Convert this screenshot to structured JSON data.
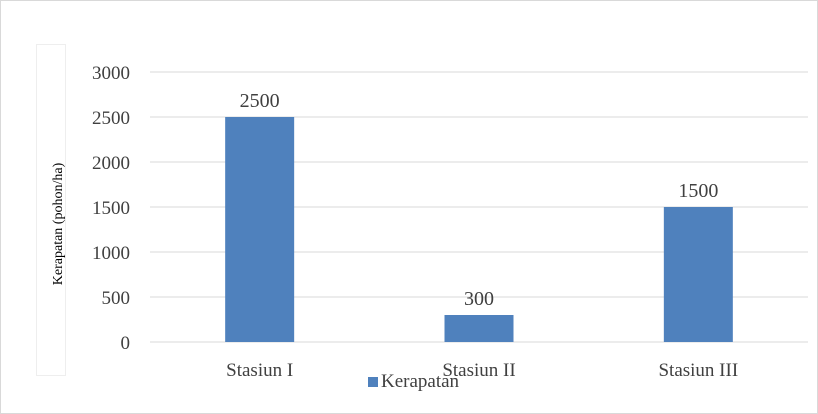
{
  "chart_data": {
    "type": "bar",
    "categories": [
      "Stasiun I",
      "Stasiun II",
      "Stasiun III"
    ],
    "series": [
      {
        "name": "Kerapatan",
        "values": [
          2500,
          300,
          1500
        ]
      }
    ],
    "ylabel": "Kerapatan (pohon/ha)",
    "ylim": [
      0,
      3000
    ],
    "yticks": [
      "0",
      "500",
      "1000",
      "1500",
      "2000",
      "2500",
      "3000"
    ],
    "data_labels": [
      "2500",
      "300",
      "1500"
    ],
    "grid": true,
    "legend_position": "bottom",
    "colors": {
      "bar": "#4f81bd",
      "grid": "#d9d9d9",
      "text": "#404040"
    }
  }
}
